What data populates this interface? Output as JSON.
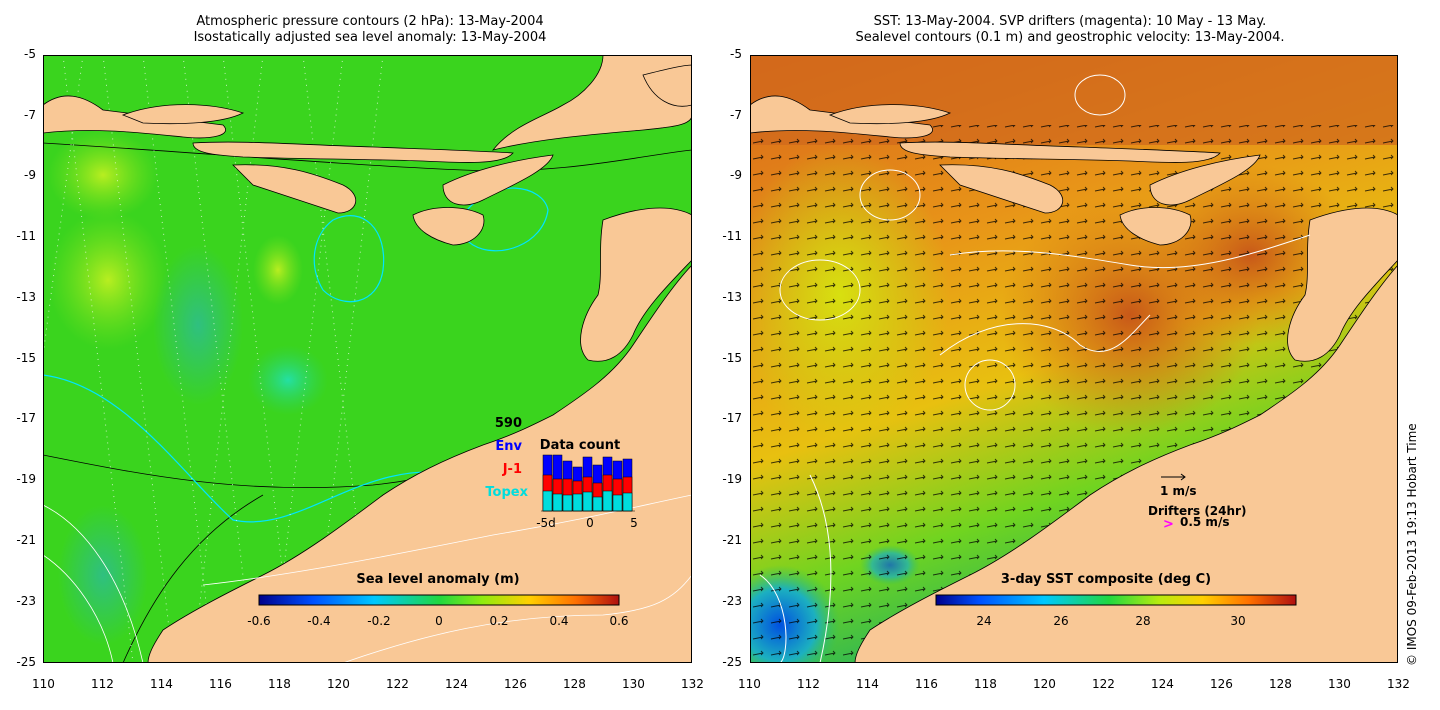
{
  "left_map": {
    "title_line1": "Atmospheric pressure contours (2 hPa): 13-May-2004",
    "title_line2": "Isostatically adjusted sea level anomaly: 13-May-2004",
    "y_ticks": [
      "-5",
      "-7",
      "-9",
      "-11",
      "-13",
      "-15",
      "-17",
      "-19",
      "-21",
      "-23",
      "-25"
    ],
    "x_ticks": [
      "110",
      "112",
      "114",
      "116",
      "118",
      "120",
      "122",
      "124",
      "126",
      "128",
      "130",
      "132"
    ],
    "colorbar": {
      "label": "Sea level anomaly (m)",
      "ticks": [
        "-0.6",
        "-0.4",
        "-0.2",
        "0",
        "0.2",
        "0.4",
        "0.6"
      ]
    },
    "legend": {
      "count": "590",
      "env": "Env",
      "j1": "J-1",
      "topex": "Topex",
      "title": "Data count",
      "x_ticks": [
        "-5d",
        "0",
        "5"
      ],
      "env_color": "#0000ff",
      "j1_color": "#ff0000",
      "topex_color": "#00dddd"
    }
  },
  "right_map": {
    "title_line1": "SST: 13-May-2004. SVP drifters (magenta): 10 May - 13 May.",
    "title_line2": "Sealevel contours (0.1 m) and geostrophic velocity: 13-May-2004.",
    "y_ticks": [
      "-5",
      "-7",
      "-9",
      "-11",
      "-13",
      "-15",
      "-17",
      "-19",
      "-21",
      "-23",
      "-25"
    ],
    "x_ticks": [
      "110",
      "112",
      "114",
      "116",
      "118",
      "120",
      "122",
      "124",
      "126",
      "128",
      "130",
      "132"
    ],
    "colorbar": {
      "label": "3-day SST composite (deg C)",
      "ticks": [
        "24",
        "26",
        "28",
        "30"
      ]
    },
    "velocity_scale": "1 m/s",
    "drifters_label": "Drifters (24hr)",
    "drifter_symbol": ">",
    "drifter_speed": "0.5 m/s",
    "drifter_color": "#ff00ff"
  },
  "credit": "© IMOS 09-Feb-2013 19:13 Hobart Time",
  "colors": {
    "land": "#f9c896",
    "sla_green": "#3ad41e",
    "sst_orange": "#e48a14"
  }
}
